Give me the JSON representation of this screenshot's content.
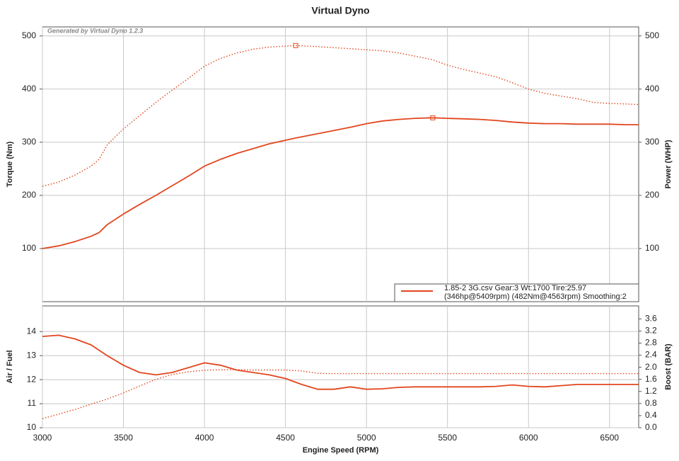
{
  "chart_data": [
    {
      "type": "line",
      "title": "Virtual Dyno",
      "annotation": "Generated by Virtual Dyno 1.2.3",
      "y_label": "Torque (Nm)",
      "y2_label": "Power (WHP)",
      "x": [
        3000,
        3100,
        3200,
        3300,
        3350,
        3400,
        3500,
        3600,
        3700,
        3800,
        3900,
        4000,
        4100,
        4200,
        4300,
        4400,
        4563,
        4700,
        4800,
        4900,
        5000,
        5100,
        5200,
        5300,
        5409,
        5500,
        5600,
        5700,
        5800,
        5900,
        6000,
        6100,
        6200,
        6300,
        6400,
        6500,
        6600,
        6680
      ],
      "xlim": [
        3000,
        6680
      ],
      "xticks": [
        3000,
        3500,
        4000,
        4500,
        5000,
        5500,
        6000,
        6500
      ],
      "ylim": [
        0,
        517
      ],
      "yticks": [
        100,
        200,
        300,
        400,
        500
      ],
      "y2lim": [
        0,
        517
      ],
      "y2ticks": [
        100,
        200,
        300,
        400,
        500
      ],
      "grid": true,
      "peak_markers": true,
      "series": [
        {
          "color": "#e2461e",
          "dash": "dotted",
          "axis": "y",
          "values": [
            217,
            225,
            238,
            255,
            268,
            295,
            325,
            350,
            375,
            398,
            420,
            443,
            458,
            468,
            475,
            479,
            482,
            480,
            478,
            476,
            474,
            472,
            468,
            462,
            455,
            445,
            437,
            430,
            423,
            412,
            400,
            392,
            387,
            382,
            375,
            373,
            372,
            371
          ]
        },
        {
          "color": "#e2461e",
          "dash": "solid",
          "axis": "y2",
          "values": [
            100,
            105,
            113,
            123,
            130,
            145,
            165,
            183,
            200,
            218,
            236,
            255,
            268,
            279,
            288,
            297,
            308,
            316,
            322,
            328,
            335,
            340,
            343,
            345,
            346,
            345,
            344,
            343,
            341,
            338,
            336,
            335,
            335,
            334,
            334,
            334,
            333,
            333
          ]
        }
      ],
      "legend": {
        "position": "lower right",
        "lines": [
          "1.85-2 3G.csv Gear:3 Wt:1700 Tire:25.97",
          "(346hp@5409rpm) (482Nm@4563rpm) Smoothing:2"
        ]
      }
    },
    {
      "type": "line",
      "x_label": "Engine Speed (RPM)",
      "y_label": "Air / Fuel",
      "y2_label": "Boost (BAR)",
      "x": [
        3000,
        3100,
        3200,
        3300,
        3400,
        3500,
        3600,
        3700,
        3800,
        3900,
        4000,
        4100,
        4200,
        4300,
        4400,
        4500,
        4600,
        4700,
        4800,
        4900,
        5000,
        5100,
        5200,
        5300,
        5400,
        5500,
        5600,
        5700,
        5800,
        5900,
        6000,
        6100,
        6200,
        6300,
        6400,
        6500,
        6600,
        6680
      ],
      "xlim": [
        3000,
        6680
      ],
      "xticks": [
        3000,
        3500,
        4000,
        4500,
        5000,
        5500,
        6000,
        6500
      ],
      "ylim": [
        10,
        15.07
      ],
      "yticks": [
        10,
        11,
        12,
        13,
        14
      ],
      "y2lim": [
        0,
        4.03
      ],
      "y2ticks": [
        {
          "value": 0,
          "label": "0.0"
        },
        0.4,
        0.8,
        1.2,
        1.6,
        {
          "value": 2,
          "label": "2.0"
        },
        2.4,
        2.8,
        3.2,
        3.6
      ],
      "grid": true,
      "series": [
        {
          "color": "#e2461e",
          "dash": "solid",
          "axis": "y",
          "values": [
            13.8,
            13.85,
            13.7,
            13.45,
            13.0,
            12.6,
            12.3,
            12.2,
            12.3,
            12.5,
            12.7,
            12.6,
            12.4,
            12.3,
            12.2,
            12.05,
            11.8,
            11.6,
            11.6,
            11.7,
            11.6,
            11.62,
            11.68,
            11.7,
            11.7,
            11.7,
            11.7,
            11.7,
            11.72,
            11.78,
            11.72,
            11.7,
            11.75,
            11.8,
            11.8,
            11.8,
            11.8,
            11.8
          ]
        },
        {
          "color": "#e2461e",
          "dash": "dotted",
          "axis": "y2",
          "values": [
            0.3,
            0.45,
            0.6,
            0.78,
            0.95,
            1.15,
            1.38,
            1.6,
            1.76,
            1.85,
            1.9,
            1.92,
            1.92,
            1.91,
            1.91,
            1.91,
            1.88,
            1.8,
            1.79,
            1.79,
            1.79,
            1.79,
            1.79,
            1.79,
            1.79,
            1.79,
            1.79,
            1.79,
            1.79,
            1.79,
            1.79,
            1.79,
            1.79,
            1.79,
            1.79,
            1.79,
            1.79,
            1.79
          ]
        }
      ]
    }
  ]
}
